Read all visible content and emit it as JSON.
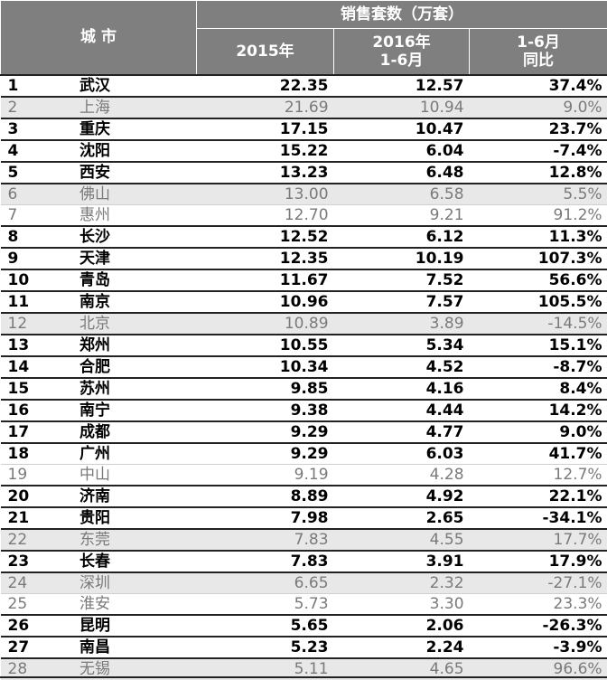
{
  "chart_data": {
    "type": "table",
    "header": {
      "city": "城 市",
      "group_label": "销售套数（万套）",
      "col_2015": "2015年",
      "col_2016_line1": "2016年",
      "col_2016_line2": "1-6月",
      "col_yoy_line1": "1-6月",
      "col_yoy_line2": "同比"
    },
    "columns": [
      "rank",
      "city",
      "2015年",
      "2016年 1-6月",
      "1-6月 同比"
    ],
    "rows": [
      {
        "rank": "1",
        "city": "武汉",
        "v2015": "22.35",
        "v2016": "12.57",
        "yoy": "37.4%",
        "bold": true
      },
      {
        "rank": "2",
        "city": "上海",
        "v2015": "21.69",
        "v2016": "10.94",
        "yoy": "9.0%",
        "bold": false
      },
      {
        "rank": "3",
        "city": "重庆",
        "v2015": "17.15",
        "v2016": "10.47",
        "yoy": "23.7%",
        "bold": true
      },
      {
        "rank": "4",
        "city": "沈阳",
        "v2015": "15.22",
        "v2016": "6.04",
        "yoy": "-7.4%",
        "bold": true
      },
      {
        "rank": "5",
        "city": "西安",
        "v2015": "13.23",
        "v2016": "6.48",
        "yoy": "12.8%",
        "bold": true
      },
      {
        "rank": "6",
        "city": "佛山",
        "v2015": "13.00",
        "v2016": "6.58",
        "yoy": "5.5%",
        "bold": false
      },
      {
        "rank": "7",
        "city": "惠州",
        "v2015": "12.70",
        "v2016": "9.21",
        "yoy": "91.2%",
        "bold": false
      },
      {
        "rank": "8",
        "city": "长沙",
        "v2015": "12.52",
        "v2016": "6.12",
        "yoy": "11.3%",
        "bold": true
      },
      {
        "rank": "9",
        "city": "天津",
        "v2015": "12.35",
        "v2016": "10.19",
        "yoy": "107.3%",
        "bold": true
      },
      {
        "rank": "10",
        "city": "青岛",
        "v2015": "11.67",
        "v2016": "7.52",
        "yoy": "56.6%",
        "bold": true
      },
      {
        "rank": "11",
        "city": "南京",
        "v2015": "10.96",
        "v2016": "7.57",
        "yoy": "105.5%",
        "bold": true
      },
      {
        "rank": "12",
        "city": "北京",
        "v2015": "10.89",
        "v2016": "3.89",
        "yoy": "-14.5%",
        "bold": false
      },
      {
        "rank": "13",
        "city": "郑州",
        "v2015": "10.55",
        "v2016": "5.34",
        "yoy": "15.1%",
        "bold": true
      },
      {
        "rank": "14",
        "city": "合肥",
        "v2015": "10.34",
        "v2016": "4.52",
        "yoy": "-8.7%",
        "bold": true
      },
      {
        "rank": "15",
        "city": "苏州",
        "v2015": "9.85",
        "v2016": "4.16",
        "yoy": "8.4%",
        "bold": true
      },
      {
        "rank": "16",
        "city": "南宁",
        "v2015": "9.38",
        "v2016": "4.44",
        "yoy": "14.2%",
        "bold": true
      },
      {
        "rank": "17",
        "city": "成都",
        "v2015": "9.29",
        "v2016": "4.77",
        "yoy": "9.0%",
        "bold": true
      },
      {
        "rank": "18",
        "city": "广州",
        "v2015": "9.29",
        "v2016": "6.03",
        "yoy": "41.7%",
        "bold": true
      },
      {
        "rank": "19",
        "city": "中山",
        "v2015": "9.19",
        "v2016": "4.28",
        "yoy": "12.7%",
        "bold": false
      },
      {
        "rank": "20",
        "city": "济南",
        "v2015": "8.89",
        "v2016": "4.92",
        "yoy": "22.1%",
        "bold": true
      },
      {
        "rank": "21",
        "city": "贵阳",
        "v2015": "7.98",
        "v2016": "2.65",
        "yoy": "-34.1%",
        "bold": true
      },
      {
        "rank": "22",
        "city": "东莞",
        "v2015": "7.83",
        "v2016": "4.55",
        "yoy": "17.7%",
        "bold": false
      },
      {
        "rank": "23",
        "city": "长春",
        "v2015": "7.83",
        "v2016": "3.91",
        "yoy": "17.9%",
        "bold": true
      },
      {
        "rank": "24",
        "city": "深圳",
        "v2015": "6.65",
        "v2016": "2.32",
        "yoy": "-27.1%",
        "bold": false
      },
      {
        "rank": "25",
        "city": "淮安",
        "v2015": "5.73",
        "v2016": "3.30",
        "yoy": "23.3%",
        "bold": false
      },
      {
        "rank": "26",
        "city": "昆明",
        "v2015": "5.65",
        "v2016": "2.06",
        "yoy": "-26.3%",
        "bold": true
      },
      {
        "rank": "27",
        "city": "南昌",
        "v2015": "5.23",
        "v2016": "2.24",
        "yoy": "-3.9%",
        "bold": true
      },
      {
        "rank": "28",
        "city": "无锡",
        "v2015": "5.11",
        "v2016": "4.65",
        "yoy": "96.6%",
        "bold": false
      }
    ]
  },
  "colors": {
    "header_bg": "#7f7f7f",
    "header_text": "#ffffff",
    "bold_text": "#000000",
    "normal_text": "#7a7a7a",
    "shaded_row_bg": "#e8e8e8"
  }
}
